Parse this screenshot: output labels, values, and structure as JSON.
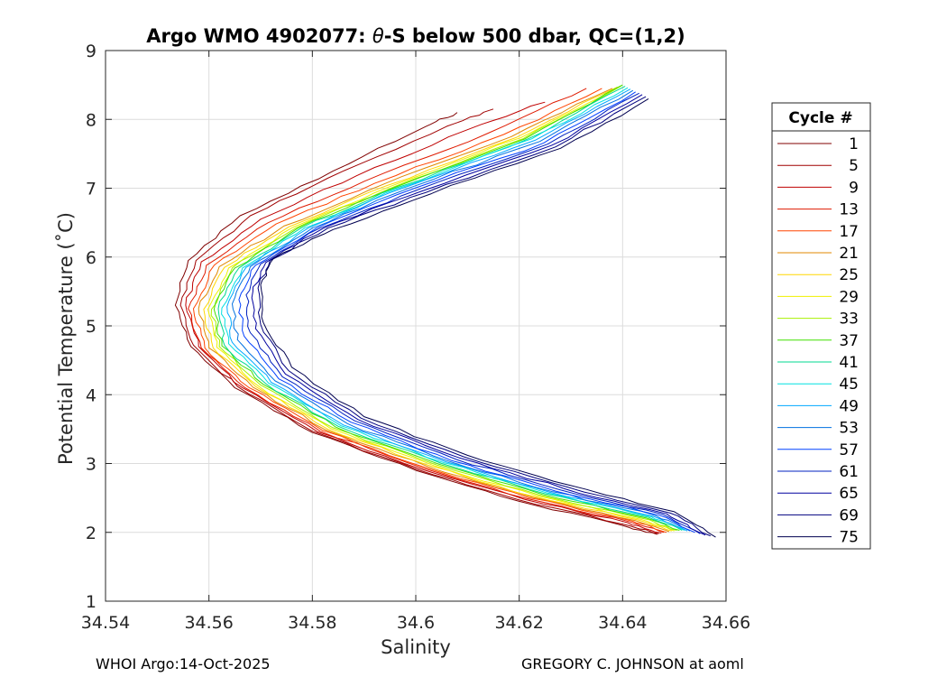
{
  "chart_data": {
    "type": "line",
    "title": "Argo WMO 4902077: θ-S below 500 dbar,  QC=(1,2)",
    "title_prefix": "Argo WMO 4902077: ",
    "title_theta": "θ",
    "title_suffix": "-S below 500 dbar,  QC=(1,2)",
    "xlabel": "Salinity",
    "ylabel": "Potential Temperature (˚C)",
    "xlim": [
      34.54,
      34.66
    ],
    "ylim": [
      1,
      9
    ],
    "xticks": [
      34.54,
      34.56,
      34.58,
      34.6,
      34.62,
      34.64,
      34.66
    ],
    "xtick_labels": [
      "34.54",
      "34.56",
      "34.58",
      "34.6",
      "34.62",
      "34.64",
      "34.66"
    ],
    "yticks": [
      1,
      2,
      3,
      4,
      5,
      6,
      7,
      8,
      9
    ],
    "ytick_labels": [
      "1",
      "2",
      "3",
      "4",
      "5",
      "6",
      "7",
      "8",
      "9"
    ],
    "grid": true,
    "legend": {
      "title": "Cycle #",
      "placement": "right-outside",
      "entries": [
        "1",
        "5",
        "9",
        "13",
        "17",
        "21",
        "25",
        "29",
        "33",
        "37",
        "41",
        "45",
        "49",
        "53",
        "57",
        "61",
        "65",
        "69",
        "75"
      ]
    },
    "series": [
      {
        "name": "1",
        "color": "#800000",
        "x": [
          34.6467,
          34.64,
          34.62,
          34.6,
          34.58,
          34.565,
          34.5565,
          34.5535,
          34.556,
          34.566,
          34.584,
          34.602,
          34.608
        ],
        "y": [
          1.97,
          2.1,
          2.45,
          2.9,
          3.45,
          4.1,
          4.7,
          5.3,
          5.95,
          6.6,
          7.25,
          7.9,
          8.1
        ]
      },
      {
        "name": "5",
        "color": "#a00000",
        "x": [
          34.647,
          34.64,
          34.62,
          34.6,
          34.58,
          34.5655,
          34.557,
          34.5545,
          34.5575,
          34.568,
          34.586,
          34.606,
          34.615
        ],
        "y": [
          1.98,
          2.12,
          2.47,
          2.92,
          3.47,
          4.12,
          4.72,
          5.3,
          5.95,
          6.6,
          7.25,
          7.9,
          8.15
        ]
      },
      {
        "name": "9",
        "color": "#bf0000",
        "x": [
          34.6475,
          34.641,
          34.621,
          34.601,
          34.581,
          34.5665,
          34.558,
          34.5555,
          34.5585,
          34.57,
          34.5885,
          34.61,
          34.625
        ],
        "y": [
          1.99,
          2.14,
          2.48,
          2.92,
          3.46,
          4.1,
          4.7,
          5.3,
          5.93,
          6.55,
          7.18,
          7.85,
          8.25
        ]
      },
      {
        "name": "13",
        "color": "#df1a00",
        "x": [
          34.648,
          34.6415,
          34.6215,
          34.6015,
          34.5815,
          34.567,
          34.5585,
          34.556,
          34.5595,
          34.5715,
          34.59,
          34.614,
          34.633
        ],
        "y": [
          2.0,
          2.15,
          2.49,
          2.93,
          3.47,
          4.1,
          4.68,
          5.25,
          5.88,
          6.5,
          7.1,
          7.8,
          8.45
        ]
      },
      {
        "name": "17",
        "color": "#ff4500",
        "x": [
          34.6485,
          34.642,
          34.622,
          34.602,
          34.582,
          34.5678,
          34.5592,
          34.557,
          34.561,
          34.573,
          34.592,
          34.617,
          34.636
        ],
        "y": [
          2.0,
          2.16,
          2.5,
          2.94,
          3.48,
          4.1,
          4.68,
          5.25,
          5.88,
          6.48,
          7.07,
          7.78,
          8.45
        ]
      },
      {
        "name": "21",
        "color": "#e08800",
        "x": [
          34.649,
          34.6425,
          34.6225,
          34.6025,
          34.5825,
          34.5685,
          34.56,
          34.558,
          34.562,
          34.5745,
          34.5935,
          34.6185,
          34.638
        ],
        "y": [
          2.01,
          2.17,
          2.51,
          2.95,
          3.49,
          4.11,
          4.68,
          5.25,
          5.86,
          6.45,
          7.05,
          7.75,
          8.45
        ]
      },
      {
        "name": "25",
        "color": "#ffd700",
        "x": [
          34.6495,
          34.643,
          34.623,
          34.603,
          34.583,
          34.569,
          34.5608,
          34.559,
          34.563,
          34.5755,
          34.5945,
          34.6195,
          34.639
        ],
        "y": [
          2.02,
          2.18,
          2.52,
          2.96,
          3.5,
          4.12,
          4.68,
          5.24,
          5.85,
          6.44,
          7.04,
          7.74,
          8.47
        ]
      },
      {
        "name": "29",
        "color": "#f0f000",
        "x": [
          34.65,
          34.6435,
          34.6235,
          34.6035,
          34.5835,
          34.5695,
          34.5615,
          34.5598,
          34.5638,
          34.5762,
          34.5952,
          34.6202,
          34.6395
        ],
        "y": [
          2.02,
          2.19,
          2.53,
          2.97,
          3.51,
          4.13,
          4.69,
          5.24,
          5.84,
          6.43,
          7.03,
          7.73,
          8.48
        ]
      },
      {
        "name": "33",
        "color": "#a8f000",
        "x": [
          34.6505,
          34.644,
          34.624,
          34.604,
          34.584,
          34.57,
          34.562,
          34.5605,
          34.5645,
          34.5768,
          34.5958,
          34.6208,
          34.6398
        ],
        "y": [
          2.03,
          2.2,
          2.54,
          2.98,
          3.52,
          4.14,
          4.7,
          5.24,
          5.84,
          6.42,
          7.02,
          7.72,
          8.49
        ]
      },
      {
        "name": "37",
        "color": "#40e000",
        "x": [
          34.651,
          34.6445,
          34.6245,
          34.6045,
          34.5845,
          34.5705,
          34.5625,
          34.561,
          34.565,
          34.5772,
          34.5962,
          34.6212,
          34.64
        ],
        "y": [
          2.03,
          2.21,
          2.55,
          2.99,
          3.53,
          4.15,
          4.71,
          5.24,
          5.84,
          6.42,
          7.02,
          7.72,
          8.5
        ]
      },
      {
        "name": "41",
        "color": "#00d890",
        "x": [
          34.6515,
          34.645,
          34.625,
          34.605,
          34.585,
          34.571,
          34.563,
          34.5618,
          34.5658,
          34.5778,
          34.5968,
          34.6218,
          34.6405
        ],
        "y": [
          2.03,
          2.22,
          2.56,
          3.0,
          3.54,
          4.16,
          4.72,
          5.25,
          5.84,
          6.42,
          7.02,
          7.72,
          8.48
        ]
      },
      {
        "name": "45",
        "color": "#00e0e0",
        "x": [
          34.652,
          34.6455,
          34.6255,
          34.6055,
          34.5855,
          34.5715,
          34.5638,
          34.5625,
          34.5665,
          34.5785,
          34.5975,
          34.6225,
          34.641
        ],
        "y": [
          2.03,
          2.23,
          2.57,
          3.01,
          3.55,
          4.17,
          4.74,
          5.26,
          5.84,
          6.42,
          7.02,
          7.72,
          8.46
        ]
      },
      {
        "name": "49",
        "color": "#00a8ff",
        "x": [
          34.6525,
          34.646,
          34.626,
          34.606,
          34.586,
          34.572,
          34.5645,
          34.5635,
          34.5672,
          34.5792,
          34.5982,
          34.6232,
          34.6415
        ],
        "y": [
          2.02,
          2.23,
          2.58,
          3.02,
          3.56,
          4.18,
          4.76,
          5.28,
          5.85,
          6.42,
          7.02,
          7.7,
          8.44
        ]
      },
      {
        "name": "53",
        "color": "#0070e0",
        "x": [
          34.653,
          34.6465,
          34.6265,
          34.6065,
          34.5868,
          34.5728,
          34.5655,
          34.5645,
          34.568,
          34.58,
          34.599,
          34.624,
          34.642
        ],
        "y": [
          2.02,
          2.24,
          2.59,
          3.03,
          3.58,
          4.2,
          4.8,
          5.32,
          5.86,
          6.42,
          7.01,
          7.68,
          8.42
        ]
      },
      {
        "name": "57",
        "color": "#0040ff",
        "x": [
          34.654,
          34.647,
          34.627,
          34.607,
          34.5875,
          34.5735,
          34.5668,
          34.5658,
          34.569,
          34.5808,
          34.5998,
          34.6248,
          34.6425
        ],
        "y": [
          2.0,
          2.25,
          2.6,
          3.04,
          3.6,
          4.23,
          4.85,
          5.38,
          5.88,
          6.42,
          7.0,
          7.66,
          8.4
        ]
      },
      {
        "name": "61",
        "color": "#0020c0",
        "x": [
          34.655,
          34.6478,
          34.6278,
          34.6078,
          34.5882,
          34.5742,
          34.568,
          34.5672,
          34.57,
          34.5815,
          34.6005,
          34.6255,
          34.6432
        ],
        "y": [
          1.98,
          2.26,
          2.62,
          3.06,
          3.62,
          4.26,
          4.9,
          5.45,
          5.9,
          6.42,
          6.98,
          7.64,
          8.38
        ]
      },
      {
        "name": "65",
        "color": "#00009f",
        "x": [
          34.656,
          34.6485,
          34.6285,
          34.6085,
          34.5888,
          34.5748,
          34.569,
          34.5685,
          34.571,
          34.5822,
          34.6012,
          34.6262,
          34.6438
        ],
        "y": [
          1.96,
          2.27,
          2.64,
          3.08,
          3.64,
          4.3,
          4.96,
          5.5,
          5.92,
          6.42,
          6.96,
          7.62,
          8.36
        ]
      },
      {
        "name": "69",
        "color": "#00007f",
        "x": [
          34.657,
          34.6492,
          34.6292,
          34.6092,
          34.5894,
          34.5754,
          34.57,
          34.5695,
          34.5718,
          34.583,
          34.602,
          34.627,
          34.6445
        ],
        "y": [
          1.95,
          2.28,
          2.66,
          3.1,
          3.66,
          4.35,
          5.02,
          5.55,
          5.95,
          6.42,
          6.94,
          7.6,
          8.33
        ]
      },
      {
        "name": "75",
        "color": "#000050",
        "x": [
          34.658,
          34.65,
          34.63,
          34.61,
          34.59,
          34.576,
          34.5705,
          34.57,
          34.5725,
          34.584,
          34.603,
          34.628,
          34.645
        ],
        "y": [
          1.93,
          2.3,
          2.68,
          3.12,
          3.68,
          4.4,
          5.05,
          5.6,
          5.98,
          6.4,
          6.92,
          7.58,
          8.3
        ]
      }
    ]
  },
  "footer": {
    "left": "WHOI Argo:14-Oct-2025",
    "right": "GREGORY C. JOHNSON at aoml"
  }
}
